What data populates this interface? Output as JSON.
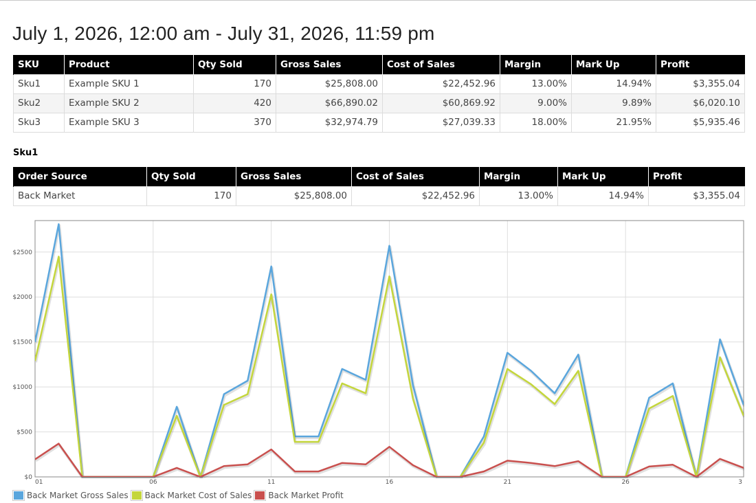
{
  "report": {
    "date_range": "July 1, 2026, 12:00 am - July 31, 2026, 11:59 pm"
  },
  "summary_table": {
    "headers": [
      "SKU",
      "Product",
      "Qty Sold",
      "Gross Sales",
      "Cost of Sales",
      "Margin",
      "Mark Up",
      "Profit"
    ],
    "rows": [
      [
        "Sku1",
        "Example SKU 1",
        "170",
        "$25,808.00",
        "$22,452.96",
        "13.00%",
        "14.94%",
        "$3,355.04"
      ],
      [
        "Sku2",
        "Example SKU 2",
        "420",
        "$66,890.02",
        "$60,869.92",
        "9.00%",
        "9.89%",
        "$6,020.10"
      ],
      [
        "Sku3",
        "Example SKU 3",
        "370",
        "$32,974.79",
        "$27,039.33",
        "18.00%",
        "21.95%",
        "$5,935.46"
      ]
    ]
  },
  "sku_section": {
    "title": "Sku1",
    "headers": [
      "Order Source",
      "Qty Sold",
      "Gross Sales",
      "Cost of Sales",
      "Margin",
      "Mark Up",
      "Profit"
    ],
    "rows": [
      [
        "Back Market",
        "170",
        "$25,808.00",
        "$22,452.96",
        "13.00%",
        "14.94%",
        "$3,355.04"
      ]
    ]
  },
  "chart_data": {
    "type": "line",
    "x": [
      1,
      2,
      3,
      4,
      5,
      6,
      7,
      8,
      9,
      10,
      11,
      12,
      13,
      14,
      15,
      16,
      17,
      18,
      19,
      20,
      21,
      22,
      23,
      24,
      25,
      26,
      27,
      28,
      29,
      30,
      31
    ],
    "x_tick_labels": [
      "01",
      "06",
      "11",
      "16",
      "21",
      "26",
      "3"
    ],
    "y_tick_labels": [
      "$0",
      "$500",
      "$1000",
      "$1500",
      "$2000",
      "$2500"
    ],
    "ylim": [
      0,
      2850
    ],
    "grid": true,
    "legend_position": "bottom-left",
    "series": [
      {
        "name": "Back Market Gross Sales",
        "color": "#5aa6dd",
        "values": [
          1500,
          2810,
          0,
          0,
          0,
          0,
          780,
          0,
          920,
          1070,
          2340,
          450,
          450,
          1200,
          1080,
          2570,
          1020,
          0,
          0,
          450,
          1380,
          1180,
          930,
          1360,
          0,
          0,
          880,
          1040,
          0,
          1530,
          800
        ]
      },
      {
        "name": "Back Market Cost of Sales",
        "color": "#c4d63c",
        "values": [
          1290,
          2450,
          0,
          0,
          0,
          0,
          680,
          0,
          800,
          920,
          2030,
          390,
          390,
          1040,
          930,
          2230,
          870,
          0,
          0,
          380,
          1200,
          1030,
          810,
          1180,
          0,
          0,
          760,
          900,
          0,
          1330,
          680
        ]
      },
      {
        "name": "Back Market Profit",
        "color": "#c9504e",
        "values": [
          195,
          370,
          0,
          0,
          0,
          0,
          100,
          0,
          120,
          140,
          305,
          60,
          60,
          155,
          140,
          335,
          130,
          0,
          0,
          60,
          180,
          155,
          120,
          175,
          0,
          0,
          115,
          135,
          0,
          200,
          100
        ]
      }
    ]
  }
}
